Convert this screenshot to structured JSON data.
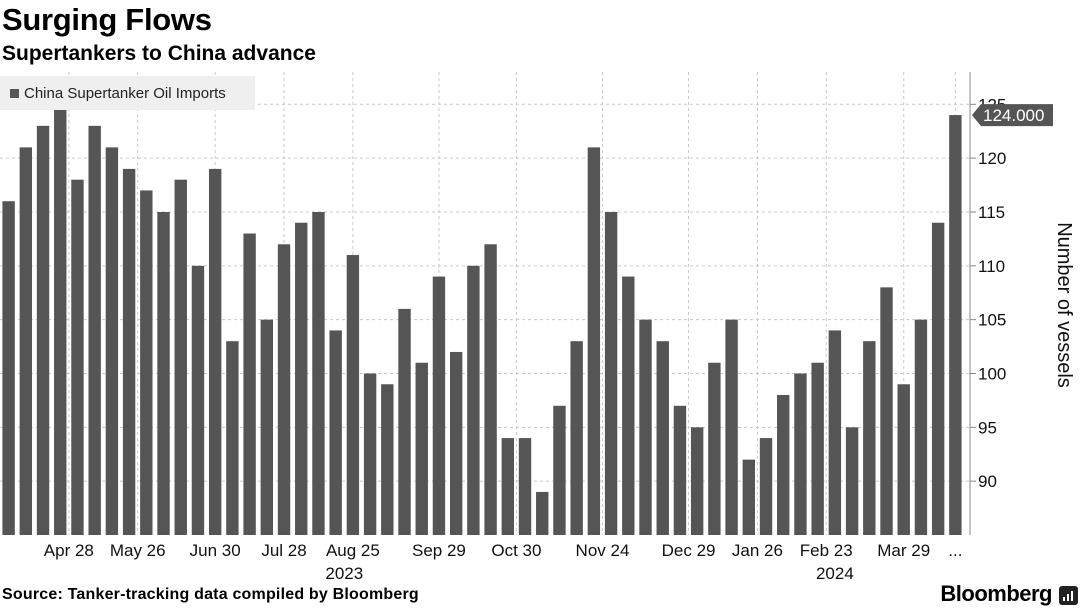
{
  "header": {
    "title": "Surging Flows",
    "subtitle": "Supertankers to China advance"
  },
  "footer": {
    "source": "Source: Tanker-tracking data compiled by Bloomberg",
    "brand": "Bloomberg",
    "brand_icon": "bloomberg-bars-icon"
  },
  "colors": {
    "bar": "#555555",
    "grid": "#c8c8c8",
    "axis": "#888888",
    "callout": "#555555"
  },
  "chart_data": {
    "type": "bar",
    "title": "Surging Flows",
    "subtitle": "Supertankers to China advance",
    "legend": "China Supertanker Oil Imports",
    "legend_position": "top-left",
    "ylabel": "Number of vessels",
    "y_axis_side": "right",
    "ylim": [
      85,
      128
    ],
    "yticks": [
      90,
      95,
      100,
      105,
      110,
      115,
      120,
      125
    ],
    "grid": true,
    "x_tick_labels": [
      "Apr 28",
      "May 26",
      "Jun 30",
      "Jul 28",
      "Aug 25",
      "Sep 29",
      "Oct 30",
      "Nov 24",
      "Dec 29",
      "Jan 26",
      "Feb 23",
      "Mar 29",
      "..."
    ],
    "x_tick_positions": [
      3.5,
      7.5,
      12,
      16,
      20,
      25,
      29.5,
      34.5,
      39.5,
      43.5,
      47.5,
      52,
      55
    ],
    "year_labels": [
      {
        "label": "2023",
        "at": 19.5
      },
      {
        "label": "2024",
        "at": 48
      }
    ],
    "last_value_label": "124.000",
    "series": [
      {
        "name": "China Supertanker Oil Imports",
        "values": [
          116,
          121,
          123,
          125,
          118,
          123,
          121,
          119,
          117,
          115,
          118,
          110,
          119,
          103,
          113,
          105,
          112,
          114,
          115,
          104,
          111,
          100,
          99,
          106,
          101,
          109,
          102,
          110,
          112,
          94,
          94,
          89,
          97,
          103,
          121,
          115,
          109,
          105,
          103,
          97,
          95,
          101,
          105,
          92,
          94,
          98,
          100,
          101,
          104,
          95,
          103,
          108,
          99,
          105,
          114,
          124
        ]
      }
    ]
  }
}
